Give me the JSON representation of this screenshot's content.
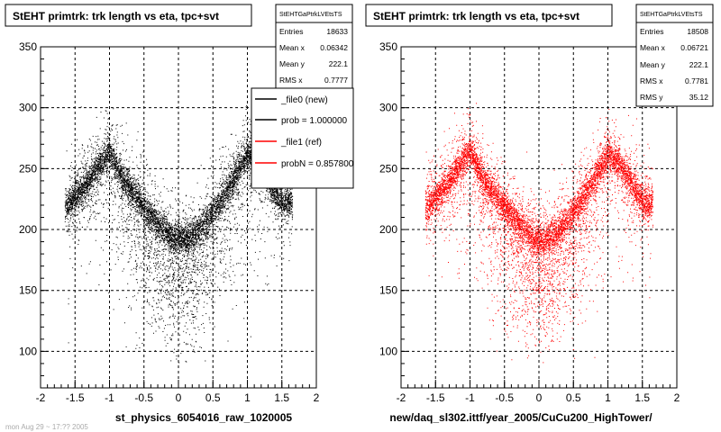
{
  "chart_data": [
    {
      "type": "scatter",
      "title": "StEHT primtrk: trk length vs eta, tpc+svt",
      "xlim": [
        -2,
        2
      ],
      "ylim": [
        70,
        350
      ],
      "x_ticks": [
        "-2",
        "-1.5",
        "-1",
        "-0.5",
        "0",
        "0.5",
        "1",
        "1.5",
        "2"
      ],
      "y_ticks": [
        "100",
        "150",
        "200",
        "250",
        "300",
        "350"
      ],
      "grid": true,
      "point_color": "#000000",
      "stats": {
        "header": "StEHTGaPtrkLVEtsTS",
        "rows": [
          {
            "label": "Entries",
            "value": "18633"
          },
          {
            "label": "Mean x",
            "value": "0.06342"
          },
          {
            "label": "Mean y",
            "value": "222.1"
          },
          {
            "label": "RMS x",
            "value": "0.7777"
          }
        ]
      },
      "legend": {
        "placement": "top-right",
        "entries": [
          {
            "label": "_file0 (new)",
            "color": "#000000"
          },
          {
            "label": "prob = 1.000000",
            "color": "#000000"
          },
          {
            "label": "_file1 (ref)",
            "color": "#ff0000"
          },
          {
            "label": "probN = 0.857800",
            "color": "#ff0000"
          }
        ]
      },
      "footer": "st_physics_6054016_raw_1020005",
      "faint_text": "mon Aug 29 ~ 17:?? 2005",
      "shape": {
        "description_points": [
          {
            "x": -1.6,
            "y": 220
          },
          {
            "x": -1.3,
            "y": 240
          },
          {
            "x": -1.0,
            "y": 265
          },
          {
            "x": -0.8,
            "y": 240
          },
          {
            "x": -0.5,
            "y": 218
          },
          {
            "x": -0.3,
            "y": 205
          },
          {
            "x": -0.1,
            "y": 193
          },
          {
            "x": 0.1,
            "y": 192
          },
          {
            "x": 0.3,
            "y": 200
          },
          {
            "x": 0.5,
            "y": 215
          },
          {
            "x": 0.7,
            "y": 232
          },
          {
            "x": 1.0,
            "y": 262
          },
          {
            "x": 1.2,
            "y": 252
          },
          {
            "x": 1.5,
            "y": 222
          }
        ]
      }
    },
    {
      "type": "scatter",
      "title": "StEHT primtrk: trk length vs eta, tpc+svt",
      "xlim": [
        -2,
        2
      ],
      "ylim": [
        70,
        350
      ],
      "x_ticks": [
        "-2",
        "-1.5",
        "-1",
        "-0.5",
        "0",
        "0.5",
        "1",
        "1.5",
        "2"
      ],
      "y_ticks": [
        "100",
        "150",
        "200",
        "250",
        "300",
        "350"
      ],
      "grid": true,
      "point_color": "#ff0000",
      "stats": {
        "header": "StEHTGaPtrkLVEtsTS",
        "rows": [
          {
            "label": "Entries",
            "value": "18508"
          },
          {
            "label": "Mean x",
            "value": "0.06721"
          },
          {
            "label": "Mean y",
            "value": "222.1"
          },
          {
            "label": "RMS x",
            "value": "0.7781"
          },
          {
            "label": "RMS y",
            "value": "35.12"
          }
        ]
      },
      "footer": "new/daq_sl302.ittf/year_2005/CuCu200_HighTower/"
    }
  ]
}
